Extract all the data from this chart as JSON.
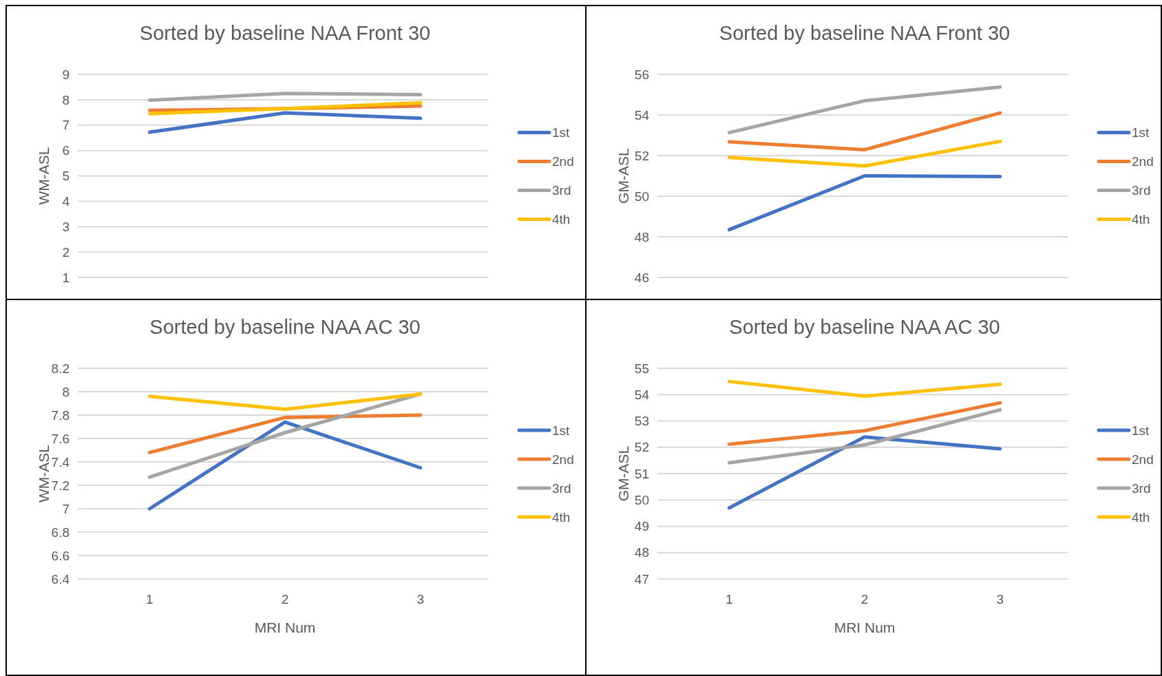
{
  "chart_data": [
    {
      "type": "line",
      "title": "Sorted by baseline NAA Front 30",
      "ylabel": "WM-ASL",
      "categories": [
        null,
        null,
        null
      ],
      "ylim": [
        1,
        9
      ],
      "yticks": [
        1,
        2,
        3,
        4,
        5,
        6,
        7,
        8,
        9
      ],
      "grid": "y",
      "legend": "right",
      "tick_labels": "y",
      "series": [
        {
          "name": "1st",
          "color": "#4472c4",
          "values": [
            6.72,
            7.48,
            7.27
          ]
        },
        {
          "name": "2nd",
          "color": "#ed7d31",
          "values": [
            7.58,
            7.65,
            7.75
          ]
        },
        {
          "name": "3rd",
          "color": "#a5a5a5",
          "values": [
            7.98,
            8.25,
            8.2
          ]
        },
        {
          "name": "4th",
          "color": "#ffc000",
          "values": [
            7.45,
            7.65,
            7.88
          ]
        }
      ]
    },
    {
      "type": "line",
      "title": "Sorted by baseline NAA Front 30",
      "ylabel": "GM-ASL",
      "categories": [
        null,
        null,
        null
      ],
      "ylim": [
        46,
        56
      ],
      "yticks": [
        46,
        48,
        50,
        52,
        54,
        56
      ],
      "grid": "y",
      "legend": "right",
      "tick_labels": "y",
      "series": [
        {
          "name": "1st",
          "color": "#4472c4",
          "values": [
            48.35,
            51.0,
            50.97
          ]
        },
        {
          "name": "2nd",
          "color": "#ed7d31",
          "values": [
            52.68,
            52.29,
            54.1
          ]
        },
        {
          "name": "3rd",
          "color": "#a5a5a5",
          "values": [
            53.13,
            54.7,
            55.37
          ]
        },
        {
          "name": "4th",
          "color": "#ffc000",
          "values": [
            51.91,
            51.49,
            52.7
          ]
        }
      ]
    },
    {
      "type": "line",
      "title": "Sorted by baseline NAA AC 30",
      "xlabel": "MRI Num",
      "ylabel": "WM-ASL",
      "categories": [
        "1",
        "2",
        "3"
      ],
      "ylim": [
        6.4,
        8.2
      ],
      "yticks": [
        6.4,
        6.6,
        6.8,
        7,
        7.2,
        7.4,
        7.6,
        7.8,
        8,
        8.2
      ],
      "grid": "y",
      "legend": "right",
      "series": [
        {
          "name": "1st",
          "color": "#4472c4",
          "values": [
            7.0,
            7.74,
            7.35
          ]
        },
        {
          "name": "2nd",
          "color": "#ed7d31",
          "values": [
            7.48,
            7.78,
            7.8
          ]
        },
        {
          "name": "3rd",
          "color": "#a5a5a5",
          "values": [
            7.27,
            7.65,
            7.98
          ]
        },
        {
          "name": "4th",
          "color": "#ffc000",
          "values": [
            7.96,
            7.85,
            7.98
          ]
        }
      ]
    },
    {
      "type": "line",
      "title": "Sorted by baseline NAA AC 30",
      "xlabel": "MRI Num",
      "ylabel": "GM-ASL",
      "categories": [
        "1",
        "2",
        "3"
      ],
      "ylim": [
        47,
        55
      ],
      "yticks": [
        47,
        48,
        49,
        50,
        51,
        52,
        53,
        54,
        55
      ],
      "grid": "y",
      "legend": "right",
      "series": [
        {
          "name": "1st",
          "color": "#4472c4",
          "values": [
            49.7,
            52.39,
            51.94
          ]
        },
        {
          "name": "2nd",
          "color": "#ed7d31",
          "values": [
            52.12,
            52.63,
            53.69
          ]
        },
        {
          "name": "3rd",
          "color": "#a5a5a5",
          "values": [
            51.41,
            52.09,
            53.42
          ]
        },
        {
          "name": "4th",
          "color": "#ffc000",
          "values": [
            54.5,
            53.94,
            54.39
          ]
        }
      ]
    }
  ]
}
